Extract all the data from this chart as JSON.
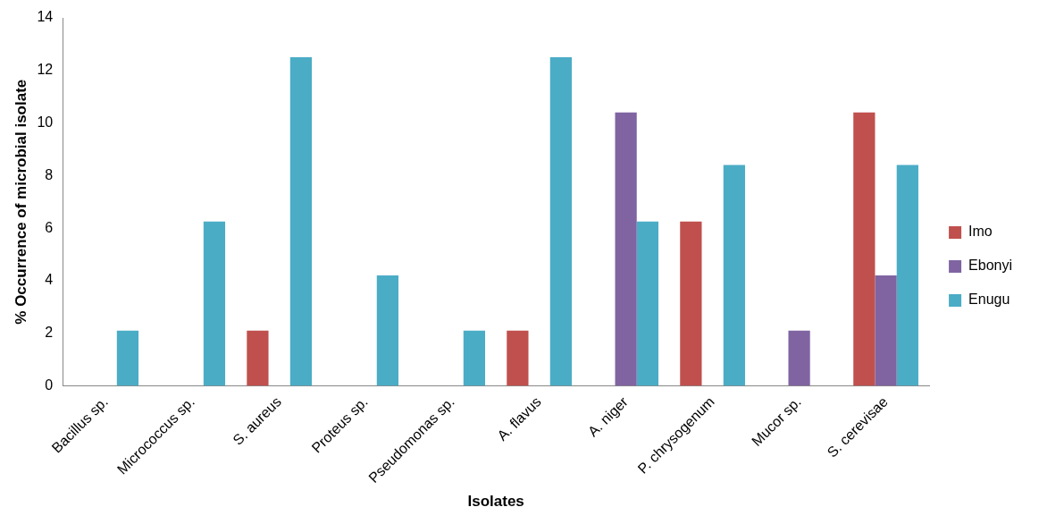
{
  "chart_data": {
    "type": "bar",
    "xlabel": "Isolates",
    "ylabel": "% Occurrence of microbial isolate",
    "categories": [
      "Bacillus sp.",
      "Micrococcus sp.",
      "S. aureus",
      "Proteus sp.",
      "Pseudomonas sp.",
      "A. flavus",
      "A. niger",
      "P. chrysogenum",
      "Mucor sp.",
      "S. cerevisae"
    ],
    "series": [
      {
        "name": "Imo",
        "color": "#c0504d",
        "values": [
          null,
          null,
          2.1,
          null,
          null,
          2.1,
          null,
          6.25,
          null,
          10.4
        ]
      },
      {
        "name": "Ebonyi",
        "color": "#8064a2",
        "values": [
          null,
          null,
          null,
          null,
          null,
          null,
          10.4,
          null,
          2.1,
          4.2
        ]
      },
      {
        "name": "Enugu",
        "color": "#4bacc6",
        "values": [
          2.1,
          6.25,
          12.5,
          4.2,
          2.1,
          12.5,
          6.25,
          8.4,
          null,
          8.4
        ]
      }
    ],
    "ylim": [
      0,
      14
    ],
    "yticks": [
      0,
      2,
      4,
      6,
      8,
      10,
      12,
      14
    ],
    "grid": false,
    "legend": "right"
  }
}
